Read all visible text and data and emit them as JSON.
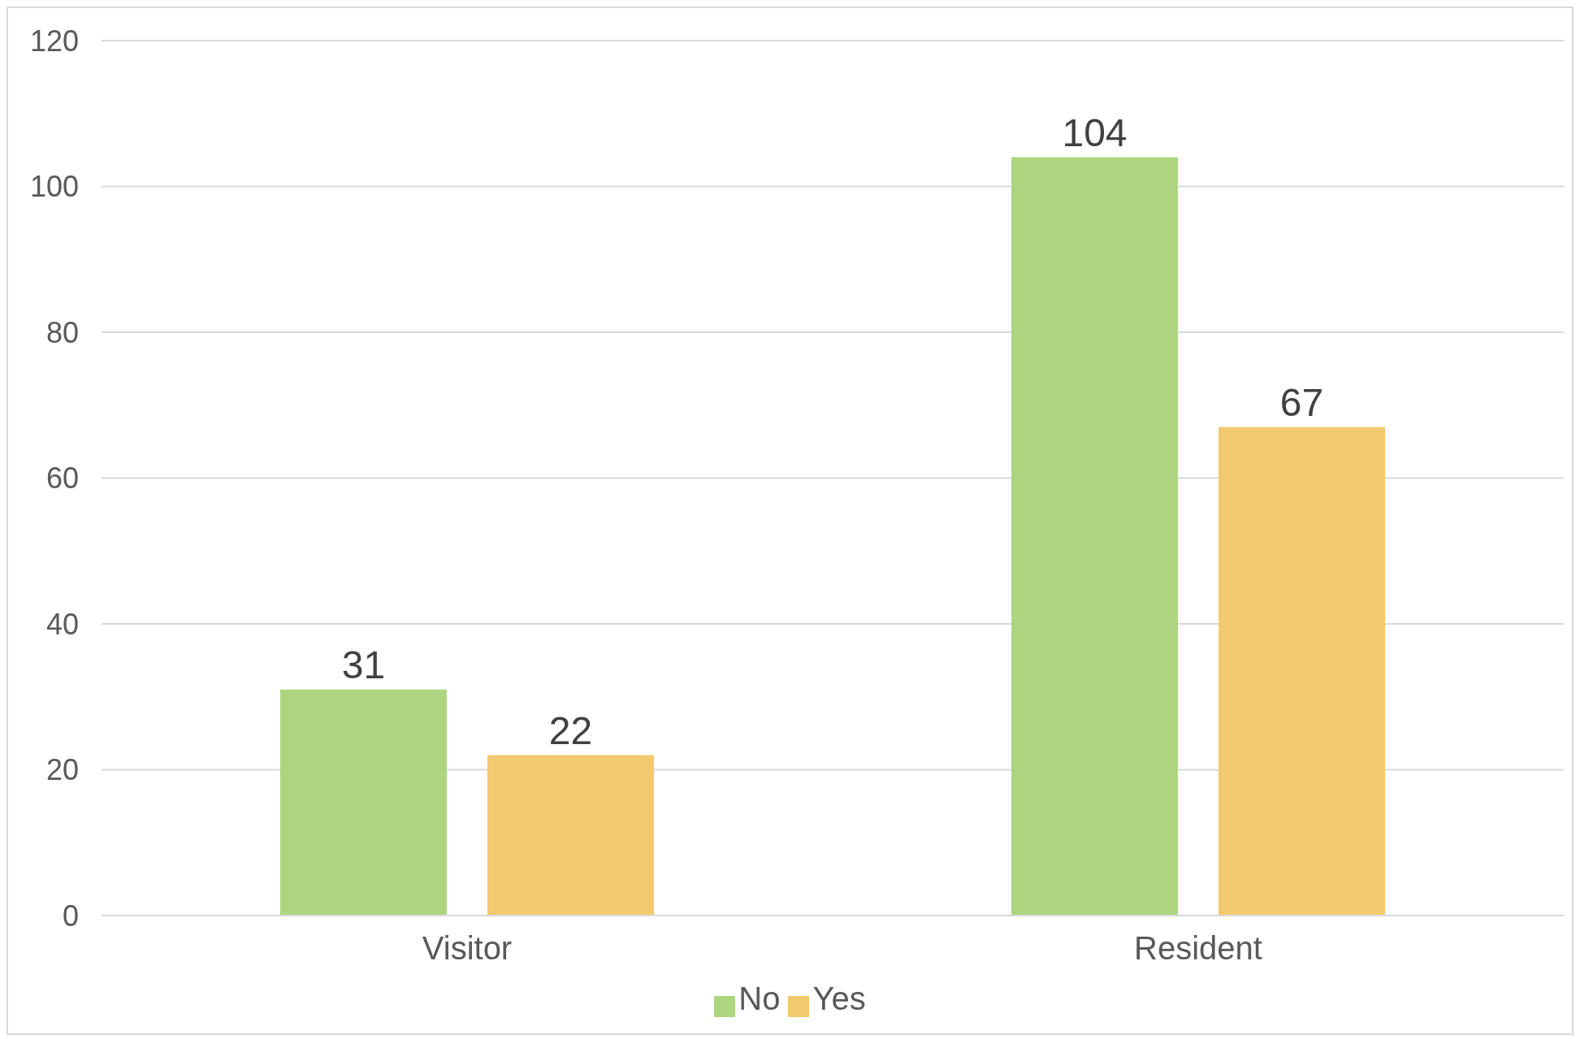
{
  "chart_data": {
    "type": "bar",
    "categories": [
      "Visitor",
      "Resident"
    ],
    "series": [
      {
        "name": "No",
        "color": "#add580",
        "values": [
          31,
          104
        ]
      },
      {
        "name": "Yes",
        "color": "#f2c96f",
        "values": [
          22,
          67
        ]
      }
    ],
    "ylim": [
      0,
      120
    ],
    "yticks": [
      0,
      20,
      40,
      60,
      80,
      100,
      120
    ],
    "grid": "y",
    "legend": "bottom",
    "data_labels": true
  }
}
